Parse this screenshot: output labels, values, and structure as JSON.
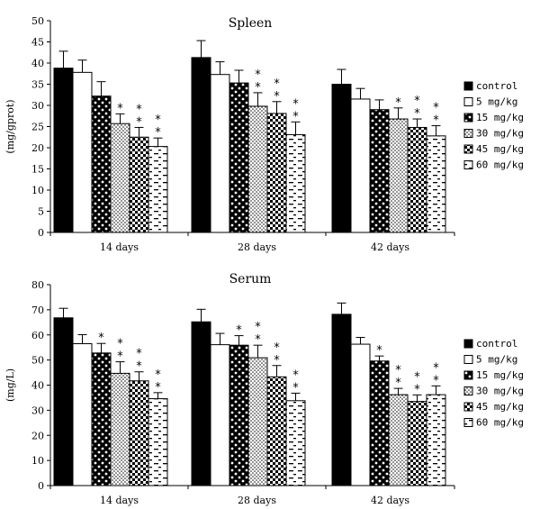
{
  "chart_data": [
    {
      "type": "bar",
      "title": "Spleen",
      "ylabel": "(mg/gprot)",
      "xlabel": "",
      "ylim": [
        0,
        50
      ],
      "yticks": [
        0,
        5,
        10,
        15,
        20,
        25,
        30,
        35,
        40,
        45,
        50
      ],
      "categories": [
        "14 days",
        "28 days",
        "42 days"
      ],
      "legend_position": "right",
      "series": [
        {
          "name": "control",
          "values": [
            38.8,
            41.3,
            35.0
          ],
          "errors": [
            4.0,
            4.0,
            3.5
          ],
          "stars": [
            0,
            0,
            0
          ]
        },
        {
          "name": "5 mg/kg",
          "values": [
            37.8,
            37.3,
            31.5
          ],
          "errors": [
            2.9,
            3.0,
            2.5
          ],
          "stars": [
            0,
            0,
            0
          ]
        },
        {
          "name": "15 mg/kg",
          "values": [
            32.2,
            35.3,
            29.0
          ],
          "errors": [
            3.4,
            3.0,
            2.3
          ],
          "stars": [
            0,
            0,
            0
          ]
        },
        {
          "name": "30 mg/kg",
          "values": [
            25.7,
            29.8,
            26.8
          ],
          "errors": [
            2.3,
            3.2,
            2.6
          ],
          "stars": [
            1,
            2,
            1
          ]
        },
        {
          "name": "45 mg/kg",
          "values": [
            22.5,
            28.1,
            24.8
          ],
          "errors": [
            2.3,
            2.8,
            2.0
          ],
          "stars": [
            2,
            2,
            2
          ]
        },
        {
          "name": "60 mg/kg",
          "values": [
            20.3,
            23.1,
            22.8
          ],
          "errors": [
            2.0,
            3.0,
            2.4
          ],
          "stars": [
            2,
            2,
            2
          ]
        }
      ]
    },
    {
      "type": "bar",
      "title": "Serum",
      "ylabel": "(mg/L)",
      "xlabel": "",
      "ylim": [
        0,
        80
      ],
      "yticks": [
        0,
        10,
        20,
        30,
        40,
        50,
        60,
        70,
        80
      ],
      "categories": [
        "14 days",
        "28 days",
        "42 days"
      ],
      "legend_position": "right",
      "series": [
        {
          "name": "control",
          "values": [
            66.8,
            65.2,
            68.2
          ],
          "errors": [
            3.8,
            5.0,
            4.5
          ],
          "stars": [
            0,
            0,
            0
          ]
        },
        {
          "name": "5 mg/kg",
          "values": [
            56.5,
            56.1,
            56.3
          ],
          "errors": [
            3.6,
            4.5,
            2.7
          ],
          "stars": [
            0,
            0,
            0
          ]
        },
        {
          "name": "15 mg/kg",
          "values": [
            52.8,
            55.9,
            49.6
          ],
          "errors": [
            3.8,
            3.8,
            2.0
          ],
          "stars": [
            1,
            1,
            1
          ]
        },
        {
          "name": "30 mg/kg",
          "values": [
            44.7,
            50.9,
            36.2
          ],
          "errors": [
            4.6,
            5.0,
            2.5
          ],
          "stars": [
            2,
            2,
            2
          ]
        },
        {
          "name": "45 mg/kg",
          "values": [
            41.7,
            43.3,
            33.5
          ],
          "errors": [
            3.6,
            4.5,
            2.6
          ],
          "stars": [
            2,
            2,
            2
          ]
        },
        {
          "name": "60 mg/kg",
          "values": [
            34.6,
            33.8,
            36.2
          ],
          "errors": [
            2.4,
            3.0,
            3.5
          ],
          "stars": [
            2,
            2,
            2
          ]
        }
      ]
    }
  ]
}
